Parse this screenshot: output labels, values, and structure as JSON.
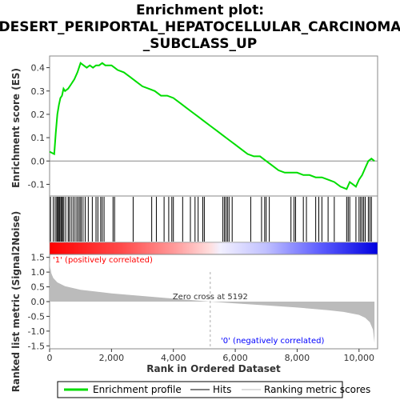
{
  "chart_data": {
    "type": "line",
    "title_lines": [
      "Enrichment plot:",
      "DESERT_PERIPORTAL_HEPATOCELLULAR_CARCINOMA",
      "_SUBCLASS_UP"
    ],
    "es_panel": {
      "ylabel": "Enrichment score (ES)",
      "ylim": [
        -0.15,
        0.45
      ],
      "yticks": [
        "0.4",
        "0.3",
        "0.2",
        "0.1",
        "0.0",
        "-0.1"
      ],
      "ytick_values": [
        0.4,
        0.3,
        0.2,
        0.1,
        0.0,
        -0.1
      ]
    },
    "xlim": [
      0,
      10600
    ],
    "xticks": [
      "0",
      "2,000",
      "4,000",
      "6,000",
      "8,000",
      "10,000"
    ],
    "xtick_values": [
      0,
      2000,
      4000,
      6000,
      8000,
      10000
    ],
    "xlabel": "Rank in Ordered Dataset",
    "series": [
      {
        "name": "Enrichment profile",
        "color": "#00dd00",
        "x": [
          0,
          150,
          200,
          250,
          300,
          350,
          400,
          450,
          500,
          600,
          700,
          750,
          800,
          900,
          1000,
          1100,
          1200,
          1300,
          1400,
          1500,
          1600,
          1700,
          1800,
          1900,
          2000,
          2100,
          2200,
          2400,
          2600,
          2800,
          3000,
          3200,
          3400,
          3600,
          3800,
          4000,
          4200,
          4400,
          4600,
          4800,
          5000,
          5200,
          5400,
          5600,
          5800,
          6000,
          6200,
          6400,
          6600,
          6800,
          7000,
          7200,
          7400,
          7600,
          7800,
          8000,
          8200,
          8400,
          8600,
          8800,
          9000,
          9200,
          9400,
          9600,
          9700,
          9800,
          9900,
          10000,
          10100,
          10200,
          10300,
          10400,
          10500
        ],
        "y": [
          0.04,
          0.03,
          0.12,
          0.2,
          0.24,
          0.27,
          0.28,
          0.31,
          0.3,
          0.31,
          0.33,
          0.34,
          0.35,
          0.38,
          0.42,
          0.41,
          0.4,
          0.41,
          0.4,
          0.41,
          0.41,
          0.42,
          0.41,
          0.41,
          0.41,
          0.4,
          0.39,
          0.38,
          0.36,
          0.34,
          0.32,
          0.31,
          0.3,
          0.28,
          0.28,
          0.27,
          0.25,
          0.23,
          0.21,
          0.19,
          0.17,
          0.15,
          0.13,
          0.11,
          0.09,
          0.07,
          0.05,
          0.03,
          0.02,
          0.02,
          0.0,
          -0.02,
          -0.04,
          -0.05,
          -0.05,
          -0.05,
          -0.06,
          -0.06,
          -0.07,
          -0.07,
          -0.08,
          -0.09,
          -0.11,
          -0.12,
          -0.09,
          -0.1,
          -0.11,
          -0.08,
          -0.06,
          -0.03,
          0.0,
          0.01,
          0.0
        ]
      },
      {
        "name": "Hits",
        "color": "#000000",
        "x": [
          30,
          120,
          180,
          230,
          260,
          290,
          320,
          360,
          390,
          420,
          460,
          520,
          600,
          640,
          700,
          760,
          820,
          880,
          930,
          980,
          1020,
          1080,
          1150,
          1250,
          1380,
          1500,
          1560,
          1650,
          1700,
          1760,
          2050,
          2100,
          2700,
          3300,
          3450,
          3700,
          3850,
          3950,
          4000,
          4300,
          4550,
          4700,
          4800,
          4950,
          5000,
          5600,
          5650,
          5700,
          5750,
          5800,
          5900,
          6500,
          6850,
          6950,
          7000,
          7100,
          7800,
          7900,
          7950,
          8200,
          8300,
          8600,
          8700,
          8800,
          9000,
          9200,
          9600,
          9650,
          9700,
          9900,
          10000,
          10050,
          10100,
          10150,
          10200,
          10300,
          10350,
          10400
        ]
      },
      {
        "name": "Ranking metric scores",
        "color": "#bbbbbb"
      }
    ],
    "metric_panel": {
      "ylabel": "Ranked list metric (Signal2Noise)",
      "ylim": [
        -1.6,
        1.6
      ],
      "yticks": [
        "1.5",
        "1.0",
        "0.5",
        "0.0",
        "-0.5",
        "-1.0",
        "-1.5"
      ],
      "ytick_values": [
        1.5,
        1.0,
        0.5,
        0.0,
        -0.5,
        -1.0,
        -1.5
      ],
      "rank": [
        0,
        20,
        60,
        120,
        250,
        500,
        1000,
        2000,
        3000,
        4000,
        5192,
        6000,
        7000,
        8000,
        9000,
        9500,
        10000,
        10200,
        10350,
        10450,
        10500
      ],
      "score": [
        1.4,
        1.15,
        0.95,
        0.8,
        0.65,
        0.52,
        0.4,
        0.28,
        0.19,
        0.1,
        0.0,
        -0.06,
        -0.13,
        -0.2,
        -0.29,
        -0.35,
        -0.45,
        -0.55,
        -0.7,
        -0.95,
        -1.4
      ],
      "zero_cross_label": "Zero cross at 5192",
      "zero_cross_rank": 5192,
      "pos_label": "'1' (positively correlated)",
      "neg_label": "'0' (negatively correlated)"
    },
    "legend_position": "bottom"
  }
}
